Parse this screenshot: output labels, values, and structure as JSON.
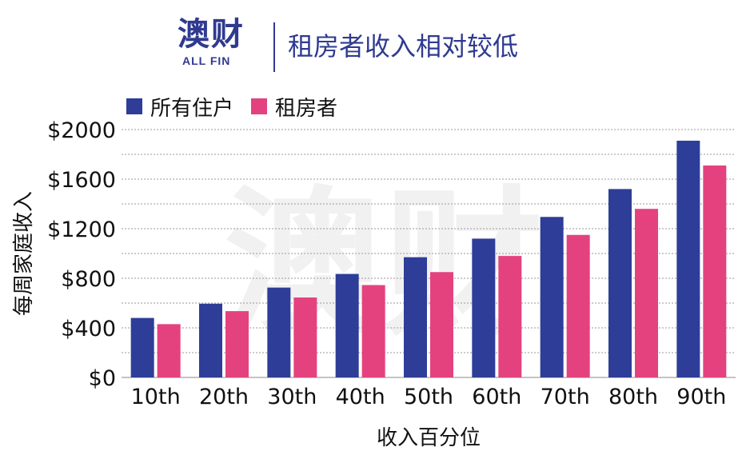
{
  "header": {
    "logo_text": "澳财",
    "logo_sub": "ALL FIN"
  },
  "colors": {
    "all_households": "#2e3d98",
    "renters": "#e4427f",
    "brand": "#2f3a8f"
  },
  "chart_data": {
    "type": "bar",
    "title": "租房者收入相对较低",
    "xlabel": "收入百分位",
    "ylabel": "每周家庭收入",
    "categories": [
      "10th",
      "20th",
      "30th",
      "40th",
      "50th",
      "60th",
      "70th",
      "80th",
      "90th"
    ],
    "series": [
      {
        "name": "所有住户",
        "values": [
          480,
          595,
          725,
          835,
          970,
          1120,
          1295,
          1520,
          1910
        ]
      },
      {
        "name": "租房者",
        "values": [
          430,
          535,
          645,
          745,
          850,
          980,
          1150,
          1360,
          1710
        ]
      }
    ],
    "ylim": [
      0,
      2000
    ],
    "yticks": [
      "$0",
      "$400",
      "$800",
      "$1200",
      "$1600",
      "$2000"
    ],
    "ytick_values": [
      0,
      400,
      800,
      1200,
      1600,
      2000
    ],
    "grid": true,
    "legend": "top-left",
    "watermark": "澳财"
  }
}
